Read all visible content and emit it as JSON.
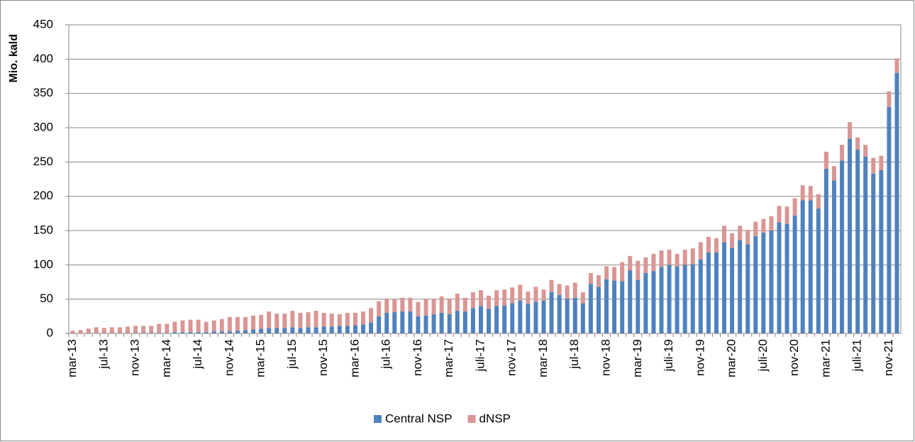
{
  "chart_data": {
    "type": "stacked-bar",
    "y_label": "Mio. kald",
    "categories": [
      "mar-13",
      null,
      null,
      null,
      "jul-13",
      null,
      null,
      null,
      "nov-13",
      null,
      null,
      null,
      "mar-14",
      null,
      null,
      null,
      "jul-14",
      null,
      null,
      null,
      "nov-14",
      null,
      null,
      null,
      "mar-15",
      null,
      null,
      null,
      "jul-15",
      null,
      null,
      null,
      "nov-15",
      null,
      null,
      null,
      "mar-16",
      null,
      null,
      null,
      "jul-16",
      null,
      null,
      null,
      "nov-16",
      null,
      null,
      null,
      "mar-17",
      null,
      null,
      null,
      "juli-17",
      null,
      null,
      null,
      "nov-17",
      null,
      null,
      null,
      "mar-18",
      null,
      null,
      null,
      "jul-18",
      null,
      null,
      null,
      "nov-18",
      null,
      null,
      null,
      "mar-19",
      null,
      null,
      null,
      "juli-19",
      null,
      null,
      null,
      "nov-19",
      null,
      null,
      null,
      "mar-20",
      null,
      null,
      null,
      "juli-20",
      null,
      null,
      null,
      "nov-20",
      null,
      null,
      null,
      "mar-21",
      null,
      null,
      null,
      "juli-21",
      null,
      null,
      null,
      "nov-21",
      null
    ],
    "series": [
      {
        "name": "Central NSP",
        "color": "#4f81bd",
        "values": [
          0,
          0,
          0,
          0,
          0,
          0,
          0,
          0,
          1,
          1,
          1,
          1,
          1,
          2,
          2,
          2,
          2,
          2,
          3,
          3,
          3,
          4,
          5,
          6,
          7,
          8,
          8,
          8,
          9,
          8,
          9,
          9,
          10,
          10,
          11,
          11,
          12,
          13,
          16,
          25,
          30,
          31,
          32,
          32,
          25,
          26,
          28,
          30,
          28,
          33,
          32,
          37,
          40,
          36,
          40,
          41,
          44,
          48,
          43,
          46,
          48,
          60,
          56,
          51,
          52,
          44,
          72,
          68,
          79,
          77,
          76,
          92,
          78,
          88,
          91,
          97,
          100,
          98,
          100,
          101,
          108,
          118,
          118,
          133,
          125,
          136,
          130,
          142,
          147,
          150,
          162,
          160,
          172,
          194,
          194,
          182,
          240,
          223,
          252,
          284,
          268,
          258,
          233,
          238,
          330,
          380
        ]
      },
      {
        "name": "dNSP",
        "color": "#d99694",
        "values": [
          4,
          5,
          7,
          9,
          8,
          9,
          9,
          10,
          10,
          10,
          10,
          13,
          13,
          15,
          17,
          18,
          18,
          15,
          16,
          18,
          21,
          20,
          19,
          20,
          20,
          24,
          21,
          21,
          24,
          22,
          22,
          24,
          20,
          19,
          17,
          19,
          18,
          19,
          21,
          22,
          21,
          19,
          20,
          20,
          21,
          24,
          22,
          24,
          23,
          25,
          20,
          23,
          23,
          19,
          23,
          23,
          23,
          23,
          18,
          22,
          16,
          18,
          16,
          19,
          22,
          16,
          16,
          17,
          19,
          20,
          28,
          21,
          28,
          23,
          25,
          24,
          22,
          18,
          22,
          23,
          25,
          23,
          21,
          24,
          21,
          21,
          21,
          21,
          20,
          21,
          24,
          25,
          25,
          22,
          21,
          21,
          25,
          21,
          23,
          24,
          18,
          17,
          23,
          21,
          23,
          21
        ]
      }
    ],
    "ylim": [
      0,
      450
    ],
    "yticks": [
      0,
      50,
      100,
      150,
      200,
      250,
      300,
      350,
      400,
      450
    ],
    "grid": true,
    "legend": "bottom"
  }
}
